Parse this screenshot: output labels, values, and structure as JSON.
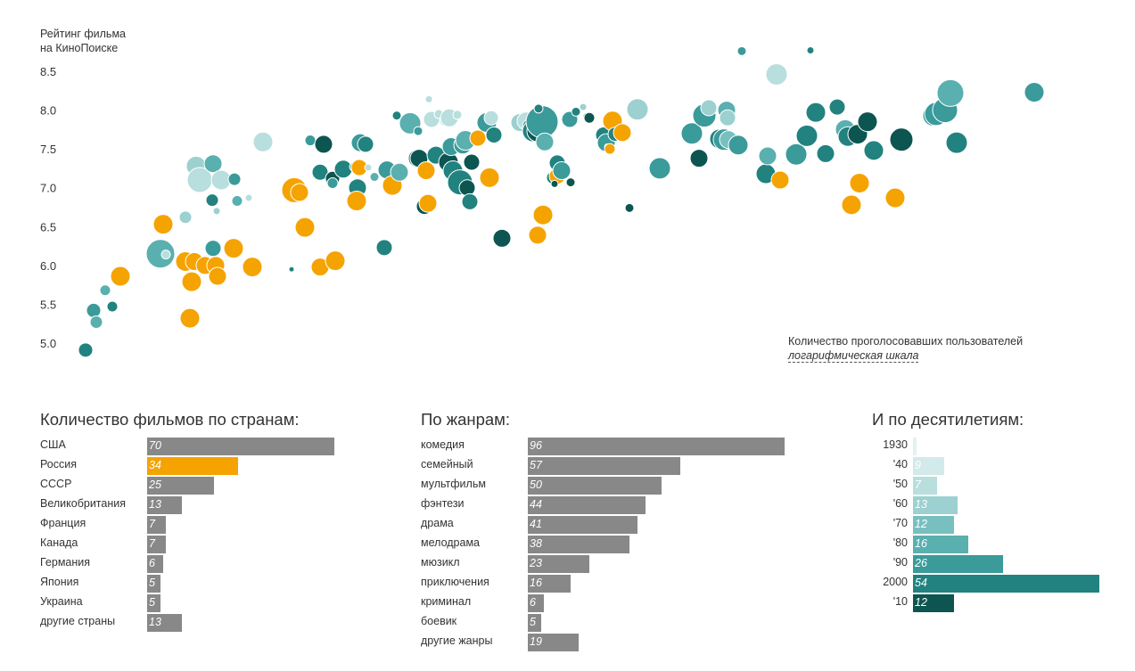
{
  "chart_data": [
    {
      "type": "scatter",
      "ylabel": [
        "Рейтинг фильма",
        "на КиноПоиске"
      ],
      "yticks": [
        "8.5",
        "8.0",
        "7.5",
        "7.0",
        "6.5",
        "6.0",
        "5.5",
        "5.0"
      ],
      "ylim": [
        4.9,
        8.85
      ],
      "xlabel": "Количество проголосовавших пользователей",
      "xnote": "логарифмическая шкала",
      "x_scale": "log",
      "colors": {
        "russia": "#f5a300",
        "other_by_decade": {
          "1930": "#e3f1f1",
          "1940": "#d3eaea",
          "1950": "#b8dede",
          "1960": "#9dd0d0",
          "1970": "#78c0c0",
          "1980": "#5aafaf",
          "1990": "#3b9a9a",
          "2000": "#22827f",
          "2010": "#0d5550"
        }
      },
      "points": [
        {
          "x": 96,
          "y": 4.91,
          "r": 8,
          "c": "2000"
        },
        {
          "x": 105,
          "y": 5.42,
          "r": 8,
          "c": "1990"
        },
        {
          "x": 108,
          "y": 5.27,
          "r": 7,
          "c": "1980"
        },
        {
          "x": 118,
          "y": 5.68,
          "r": 6,
          "c": "1980"
        },
        {
          "x": 126,
          "y": 5.47,
          "r": 6,
          "c": "2000"
        },
        {
          "x": 135,
          "y": 5.86,
          "r": 11,
          "c": "russia"
        },
        {
          "x": 180,
          "y": 6.15,
          "r": 16,
          "c": "1980"
        },
        {
          "x": 186,
          "y": 6.14,
          "r": 5,
          "c": "1950"
        },
        {
          "x": 183,
          "y": 6.53,
          "r": 11,
          "c": "russia"
        },
        {
          "x": 208,
          "y": 6.62,
          "r": 7,
          "c": "1960"
        },
        {
          "x": 208,
          "y": 6.05,
          "r": 11,
          "c": "russia"
        },
        {
          "x": 220,
          "y": 7.28,
          "r": 11,
          "c": "1960"
        },
        {
          "x": 224,
          "y": 7.1,
          "r": 14,
          "c": "1950"
        },
        {
          "x": 239,
          "y": 7.31,
          "r": 10,
          "c": "1980"
        },
        {
          "x": 248,
          "y": 7.1,
          "r": 11,
          "c": "1950"
        },
        {
          "x": 263,
          "y": 7.11,
          "r": 7,
          "c": "1990"
        },
        {
          "x": 238,
          "y": 6.84,
          "r": 7,
          "c": "2000"
        },
        {
          "x": 243,
          "y": 6.7,
          "r": 4,
          "c": "1960"
        },
        {
          "x": 266,
          "y": 6.83,
          "r": 6,
          "c": "1980"
        },
        {
          "x": 279,
          "y": 6.87,
          "r": 4,
          "c": "1950"
        },
        {
          "x": 218,
          "y": 6.05,
          "r": 10,
          "c": "russia"
        },
        {
          "x": 230,
          "y": 6.0,
          "r": 10,
          "c": "russia"
        },
        {
          "x": 239,
          "y": 6.22,
          "r": 9,
          "c": "1990"
        },
        {
          "x": 242,
          "y": 6.0,
          "r": 10,
          "c": "russia"
        },
        {
          "x": 244,
          "y": 5.86,
          "r": 10,
          "c": "russia"
        },
        {
          "x": 215,
          "y": 5.79,
          "r": 11,
          "c": "russia"
        },
        {
          "x": 213,
          "y": 5.32,
          "r": 11,
          "c": "russia"
        },
        {
          "x": 262,
          "y": 6.22,
          "r": 11,
          "c": "russia"
        },
        {
          "x": 283,
          "y": 5.98,
          "r": 11,
          "c": "russia"
        },
        {
          "x": 295,
          "y": 7.59,
          "r": 11,
          "c": "1950"
        },
        {
          "x": 327,
          "y": 5.95,
          "r": 3,
          "c": "2000"
        },
        {
          "x": 330,
          "y": 6.97,
          "r": 14,
          "c": "russia"
        },
        {
          "x": 336,
          "y": 6.94,
          "r": 10,
          "c": "russia"
        },
        {
          "x": 342,
          "y": 6.49,
          "r": 11,
          "c": "russia"
        },
        {
          "x": 348,
          "y": 7.61,
          "r": 6,
          "c": "1990"
        },
        {
          "x": 363,
          "y": 7.56,
          "r": 10,
          "c": "2010"
        },
        {
          "x": 359,
          "y": 7.2,
          "r": 9,
          "c": "2000"
        },
        {
          "x": 373,
          "y": 7.12,
          "r": 8,
          "c": "2010"
        },
        {
          "x": 373,
          "y": 7.06,
          "r": 6,
          "c": "1990"
        },
        {
          "x": 359,
          "y": 5.98,
          "r": 10,
          "c": "russia"
        },
        {
          "x": 376,
          "y": 6.06,
          "r": 11,
          "c": "russia"
        },
        {
          "x": 385,
          "y": 7.24,
          "r": 10,
          "c": "2000"
        },
        {
          "x": 397,
          "y": 7.27,
          "r": 5,
          "c": "1980"
        },
        {
          "x": 403,
          "y": 7.26,
          "r": 9,
          "c": "russia"
        },
        {
          "x": 401,
          "y": 7.0,
          "r": 10,
          "c": "2000"
        },
        {
          "x": 404,
          "y": 7.58,
          "r": 10,
          "c": "1990"
        },
        {
          "x": 400,
          "y": 6.83,
          "r": 11,
          "c": "russia"
        },
        {
          "x": 409,
          "y": 7.52,
          "r": 4,
          "c": "1950"
        },
        {
          "x": 410,
          "y": 7.56,
          "r": 9,
          "c": "2000"
        },
        {
          "x": 413,
          "y": 7.26,
          "r": 4,
          "c": "1950"
        },
        {
          "x": 420,
          "y": 7.14,
          "r": 5,
          "c": "1980"
        },
        {
          "x": 431,
          "y": 6.23,
          "r": 9,
          "c": "2000"
        },
        {
          "x": 434,
          "y": 7.23,
          "r": 10,
          "c": "1990"
        },
        {
          "x": 440,
          "y": 7.03,
          "r": 11,
          "c": "russia"
        },
        {
          "x": 445,
          "y": 7.93,
          "r": 5,
          "c": "2000"
        },
        {
          "x": 448,
          "y": 7.2,
          "r": 10,
          "c": "1980"
        },
        {
          "x": 460,
          "y": 7.83,
          "r": 12,
          "c": "1980"
        },
        {
          "x": 468,
          "y": 7.38,
          "r": 10,
          "c": "2000"
        },
        {
          "x": 470,
          "y": 7.38,
          "r": 10,
          "c": "2010"
        },
        {
          "x": 469,
          "y": 7.73,
          "r": 5,
          "c": "1990"
        },
        {
          "x": 478,
          "y": 7.22,
          "r": 10,
          "c": "russia"
        },
        {
          "x": 476,
          "y": 6.76,
          "r": 9,
          "c": "2010"
        },
        {
          "x": 480,
          "y": 6.8,
          "r": 10,
          "c": "russia"
        },
        {
          "x": 481,
          "y": 8.14,
          "r": 4,
          "c": "1950"
        },
        {
          "x": 484,
          "y": 7.88,
          "r": 9,
          "c": "1950"
        },
        {
          "x": 489,
          "y": 7.42,
          "r": 10,
          "c": "2000"
        },
        {
          "x": 492,
          "y": 7.95,
          "r": 5,
          "c": "1950"
        },
        {
          "x": 500,
          "y": 7.87,
          "r": 7,
          "c": "1950"
        },
        {
          "x": 503,
          "y": 7.33,
          "r": 11,
          "c": "2010"
        },
        {
          "x": 504,
          "y": 7.9,
          "r": 10,
          "c": "1950"
        },
        {
          "x": 506,
          "y": 7.53,
          "r": 10,
          "c": "1990"
        },
        {
          "x": 508,
          "y": 7.22,
          "r": 11,
          "c": "2000"
        },
        {
          "x": 513,
          "y": 7.94,
          "r": 5,
          "c": "1950"
        },
        {
          "x": 516,
          "y": 7.07,
          "r": 14,
          "c": "2000"
        },
        {
          "x": 519,
          "y": 7.55,
          "r": 10,
          "c": "1990"
        },
        {
          "x": 522,
          "y": 7.61,
          "r": 11,
          "c": "1980"
        },
        {
          "x": 524,
          "y": 7.0,
          "r": 9,
          "c": "2010"
        },
        {
          "x": 527,
          "y": 6.82,
          "r": 9,
          "c": "2000"
        },
        {
          "x": 529,
          "y": 7.33,
          "r": 9,
          "c": "2010"
        },
        {
          "x": 536,
          "y": 7.64,
          "r": 9,
          "c": "russia"
        },
        {
          "x": 546,
          "y": 7.84,
          "r": 11,
          "c": "1990"
        },
        {
          "x": 549,
          "y": 7.13,
          "r": 11,
          "c": "russia"
        },
        {
          "x": 551,
          "y": 7.9,
          "r": 8,
          "c": "1950"
        },
        {
          "x": 554,
          "y": 7.68,
          "r": 9,
          "c": "2000"
        },
        {
          "x": 563,
          "y": 6.35,
          "r": 10,
          "c": "2010"
        },
        {
          "x": 583,
          "y": 7.84,
          "r": 10,
          "c": "1960"
        },
        {
          "x": 590,
          "y": 7.86,
          "r": 10,
          "c": "1950"
        },
        {
          "x": 595,
          "y": 7.79,
          "r": 9,
          "c": "1990"
        },
        {
          "x": 598,
          "y": 7.73,
          "r": 12,
          "c": "2000"
        },
        {
          "x": 603,
          "y": 7.73,
          "r": 12,
          "c": "2010"
        },
        {
          "x": 605,
          "y": 7.83,
          "r": 14,
          "c": "1990"
        },
        {
          "x": 608,
          "y": 7.85,
          "r": 18,
          "c": "1990"
        },
        {
          "x": 604,
          "y": 8.02,
          "r": 5,
          "c": "2000"
        },
        {
          "x": 611,
          "y": 7.59,
          "r": 10,
          "c": "1980"
        },
        {
          "x": 603,
          "y": 6.39,
          "r": 10,
          "c": "russia"
        },
        {
          "x": 609,
          "y": 6.65,
          "r": 11,
          "c": "russia"
        },
        {
          "x": 620,
          "y": 7.13,
          "r": 7,
          "c": "2000"
        },
        {
          "x": 625,
          "y": 7.15,
          "r": 9,
          "c": "russia"
        },
        {
          "x": 622,
          "y": 7.05,
          "r": 4,
          "c": "2010"
        },
        {
          "x": 625,
          "y": 7.32,
          "r": 9,
          "c": "2000"
        },
        {
          "x": 630,
          "y": 7.22,
          "r": 10,
          "c": "1990"
        },
        {
          "x": 640,
          "y": 7.07,
          "r": 5,
          "c": "2010"
        },
        {
          "x": 639,
          "y": 7.88,
          "r": 9,
          "c": "1990"
        },
        {
          "x": 646,
          "y": 7.98,
          "r": 5,
          "c": "2000"
        },
        {
          "x": 654,
          "y": 8.04,
          "r": 4,
          "c": "1960"
        },
        {
          "x": 658,
          "y": 7.92,
          "r": 4,
          "c": "1990"
        },
        {
          "x": 661,
          "y": 7.9,
          "r": 6,
          "c": "2010"
        },
        {
          "x": 677,
          "y": 7.68,
          "r": 9,
          "c": "2000"
        },
        {
          "x": 680,
          "y": 7.58,
          "r": 10,
          "c": "1990"
        },
        {
          "x": 681,
          "y": 7.53,
          "r": 3,
          "c": "2010"
        },
        {
          "x": 684,
          "y": 7.5,
          "r": 6,
          "c": "russia"
        },
        {
          "x": 687,
          "y": 7.86,
          "r": 11,
          "c": "russia"
        },
        {
          "x": 690,
          "y": 7.69,
          "r": 8,
          "c": "2000"
        },
        {
          "x": 698,
          "y": 7.71,
          "r": 10,
          "c": "russia"
        },
        {
          "x": 706,
          "y": 6.74,
          "r": 5,
          "c": "2010"
        },
        {
          "x": 715,
          "y": 8.01,
          "r": 12,
          "c": "1960"
        },
        {
          "x": 740,
          "y": 7.25,
          "r": 12,
          "c": "1990"
        },
        {
          "x": 776,
          "y": 7.7,
          "r": 12,
          "c": "1990"
        },
        {
          "x": 784,
          "y": 7.38,
          "r": 10,
          "c": "2010"
        },
        {
          "x": 790,
          "y": 7.93,
          "r": 13,
          "c": "1990"
        },
        {
          "x": 795,
          "y": 8.03,
          "r": 9,
          "c": "1960"
        },
        {
          "x": 807,
          "y": 7.63,
          "r": 11,
          "c": "2000"
        },
        {
          "x": 812,
          "y": 7.62,
          "r": 12,
          "c": "1990"
        },
        {
          "x": 815,
          "y": 8.0,
          "r": 10,
          "c": "1980"
        },
        {
          "x": 817,
          "y": 7.62,
          "r": 10,
          "c": "1970"
        },
        {
          "x": 816,
          "y": 7.9,
          "r": 9,
          "c": "1960"
        },
        {
          "x": 828,
          "y": 7.55,
          "r": 11,
          "c": "1990"
        },
        {
          "x": 832,
          "y": 8.76,
          "r": 5,
          "c": "1990"
        },
        {
          "x": 859,
          "y": 7.18,
          "r": 11,
          "c": "2000"
        },
        {
          "x": 861,
          "y": 7.41,
          "r": 10,
          "c": "1980"
        },
        {
          "x": 871,
          "y": 8.46,
          "r": 12,
          "c": "1950"
        },
        {
          "x": 875,
          "y": 7.1,
          "r": 10,
          "c": "russia"
        },
        {
          "x": 893,
          "y": 7.43,
          "r": 12,
          "c": "1990"
        },
        {
          "x": 905,
          "y": 7.67,
          "r": 12,
          "c": "2000"
        },
        {
          "x": 909,
          "y": 8.77,
          "r": 4,
          "c": "2000"
        },
        {
          "x": 915,
          "y": 7.97,
          "r": 11,
          "c": "2000"
        },
        {
          "x": 926,
          "y": 7.44,
          "r": 10,
          "c": "2000"
        },
        {
          "x": 939,
          "y": 8.04,
          "r": 9,
          "c": "2000"
        },
        {
          "x": 948,
          "y": 7.75,
          "r": 11,
          "c": "1980"
        },
        {
          "x": 951,
          "y": 7.66,
          "r": 11,
          "c": "2000"
        },
        {
          "x": 955,
          "y": 6.78,
          "r": 11,
          "c": "russia"
        },
        {
          "x": 962,
          "y": 7.69,
          "r": 11,
          "c": "2010"
        },
        {
          "x": 964,
          "y": 7.06,
          "r": 11,
          "c": "russia"
        },
        {
          "x": 973,
          "y": 7.85,
          "r": 11,
          "c": "2010"
        },
        {
          "x": 980,
          "y": 7.48,
          "r": 11,
          "c": "2000"
        },
        {
          "x": 1004,
          "y": 6.87,
          "r": 11,
          "c": "russia"
        },
        {
          "x": 1011,
          "y": 7.62,
          "r": 13,
          "c": "2010"
        },
        {
          "x": 1047,
          "y": 7.93,
          "r": 12,
          "c": "1990"
        },
        {
          "x": 1050,
          "y": 7.95,
          "r": 13,
          "c": "1990"
        },
        {
          "x": 1060,
          "y": 8.0,
          "r": 14,
          "c": "1990"
        },
        {
          "x": 1066,
          "y": 8.22,
          "r": 15,
          "c": "1980"
        },
        {
          "x": 1073,
          "y": 7.58,
          "r": 12,
          "c": "2000"
        },
        {
          "x": 1160,
          "y": 8.23,
          "r": 11,
          "c": "1990"
        }
      ]
    },
    {
      "type": "bar",
      "title": "Количество фильмов по странам:",
      "categories": [
        "США",
        "Россия",
        "СССР",
        "Великобритания",
        "Франция",
        "Канада",
        "Германия",
        "Япония",
        "Украина",
        "другие страны"
      ],
      "values": [
        70,
        34,
        25,
        13,
        7,
        7,
        6,
        5,
        5,
        13
      ],
      "colors": [
        "#888888",
        "#f5a300",
        "#888888",
        "#888888",
        "#888888",
        "#888888",
        "#888888",
        "#888888",
        "#888888",
        "#888888"
      ],
      "max": 70
    },
    {
      "type": "bar",
      "title": "По жанрам:",
      "categories": [
        "комедия",
        "семейный",
        "мультфильм",
        "фэнтези",
        "драма",
        "мелодрама",
        "мюзикл",
        "приключения",
        "криминал",
        "боевик",
        "другие жанры"
      ],
      "values": [
        96,
        57,
        50,
        44,
        41,
        38,
        23,
        16,
        6,
        5,
        19
      ],
      "colors": [
        "#888888",
        "#888888",
        "#888888",
        "#888888",
        "#888888",
        "#888888",
        "#888888",
        "#888888",
        "#888888",
        "#888888",
        "#888888"
      ],
      "max": 96
    },
    {
      "type": "bar",
      "title": "И по десятилетиям:",
      "categories": [
        "1930",
        "'40",
        "'50",
        "'60",
        "'70",
        "'80",
        "'90",
        "2000",
        "'10"
      ],
      "values": [
        1,
        9,
        7,
        13,
        12,
        16,
        26,
        54,
        12
      ],
      "labels": [
        "",
        "9",
        "7",
        "13",
        "12",
        "16",
        "26",
        "54",
        "12"
      ],
      "colors": [
        "#e3f1f1",
        "#d3eaea",
        "#b8dede",
        "#9dd0d0",
        "#78c0c0",
        "#5aafaf",
        "#3b9a9a",
        "#22827f",
        "#0d5550"
      ],
      "max": 54
    }
  ]
}
